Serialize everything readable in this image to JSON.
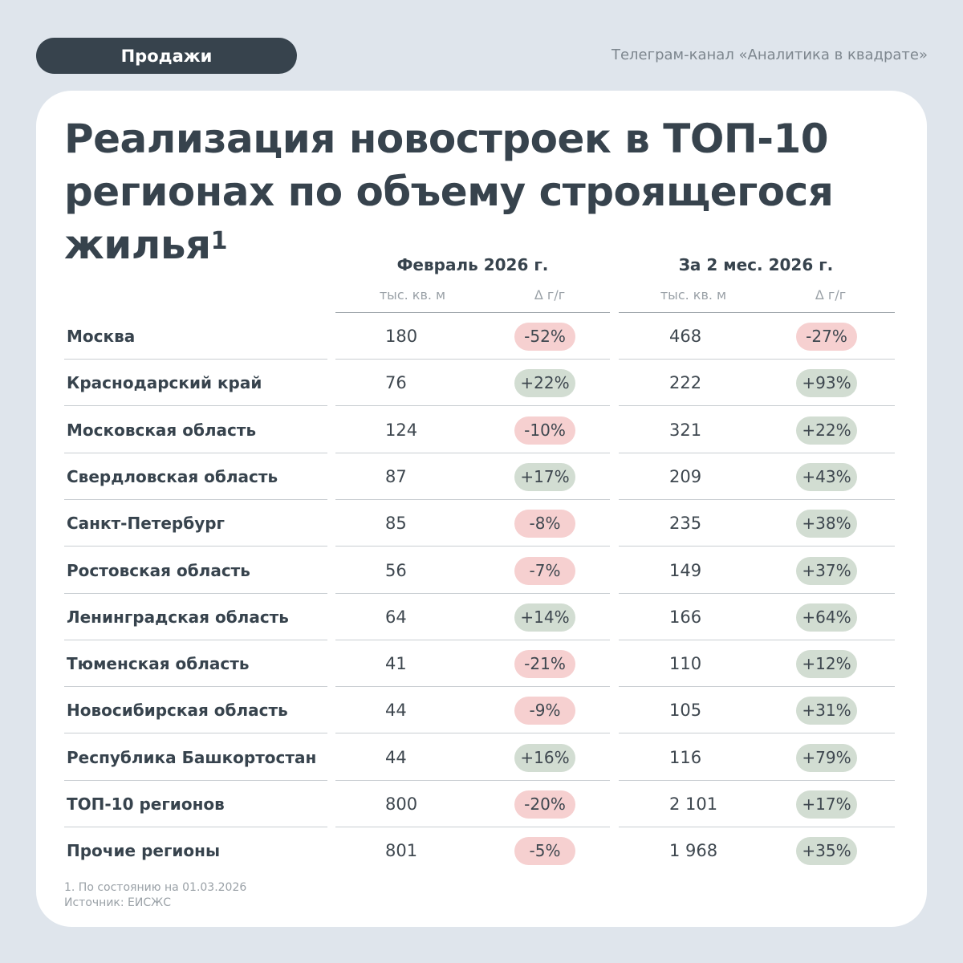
{
  "header": {
    "tag": "Продажи",
    "channel": "Телеграм-канал «Аналитика в квадрате»"
  },
  "title": {
    "text": "Реализация новостроек в ТОП-10 регионах по объему строящегося жилья",
    "footnote_mark": "1"
  },
  "columns": {
    "group1": "Февраль 2026 г.",
    "group2": "За 2 мес. 2026 г.",
    "unit": "тыс. кв. м",
    "delta": "Δ г/г"
  },
  "colors": {
    "negative": "#f6d0d0",
    "positive": "#d2ddd2",
    "dark": "#37434d"
  },
  "rows": [
    {
      "region": "Москва",
      "feb": "180",
      "feb_d": "-52%",
      "two": "468",
      "two_d": "-27%"
    },
    {
      "region": "Краснодарский край",
      "feb": "76",
      "feb_d": "+22%",
      "two": "222",
      "two_d": "+93%"
    },
    {
      "region": "Московская область",
      "feb": "124",
      "feb_d": "-10%",
      "two": "321",
      "two_d": "+22%"
    },
    {
      "region": "Свердловская область",
      "feb": "87",
      "feb_d": "+17%",
      "two": "209",
      "two_d": "+43%"
    },
    {
      "region": "Санкт-Петербург",
      "feb": "85",
      "feb_d": "-8%",
      "two": "235",
      "two_d": "+38%"
    },
    {
      "region": "Ростовская область",
      "feb": "56",
      "feb_d": "-7%",
      "two": "149",
      "two_d": "+37%"
    },
    {
      "region": "Ленинградская область",
      "feb": "64",
      "feb_d": "+14%",
      "two": "166",
      "two_d": "+64%"
    },
    {
      "region": "Тюменская область",
      "feb": "41",
      "feb_d": "-21%",
      "two": "110",
      "two_d": "+12%"
    },
    {
      "region": "Новосибирская область",
      "feb": "44",
      "feb_d": "-9%",
      "two": "105",
      "two_d": "+31%"
    },
    {
      "region": "Республика Башкортостан",
      "feb": "44",
      "feb_d": "+16%",
      "two": "116",
      "two_d": "+79%"
    },
    {
      "region": "ТОП-10 регионов",
      "feb": "800",
      "feb_d": "-20%",
      "two": "2 101",
      "two_d": "+17%"
    },
    {
      "region": "Прочие регионы",
      "feb": "801",
      "feb_d": "-5%",
      "two": "1 968",
      "two_d": "+35%"
    }
  ],
  "footer": {
    "note": "1. По состоянию на 01.03.2026",
    "source": "Источник: ЕИСЖС"
  }
}
